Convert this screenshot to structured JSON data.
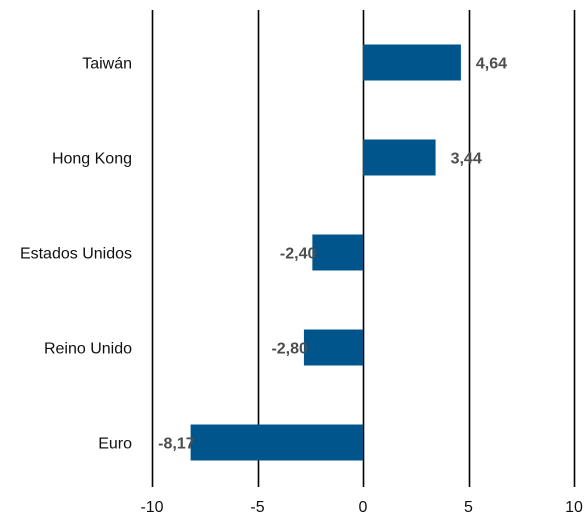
{
  "chart_data": {
    "type": "bar",
    "orientation": "horizontal",
    "categories": [
      "Taiwán",
      "Hong Kong",
      "Estados Unidos",
      "Reino Unido",
      "Euro"
    ],
    "values": [
      4.64,
      3.44,
      -2.4,
      -2.8,
      -8.17
    ],
    "data_labels": [
      "4,64",
      "3,44",
      "-2,40",
      "-2,80",
      "-8,17"
    ],
    "xlim": [
      -10,
      10
    ],
    "x_ticks": [
      -10,
      -5,
      0,
      5,
      10
    ],
    "x_tick_labels": [
      "-10",
      "-5",
      "0",
      "5",
      "10"
    ],
    "vertical_gridlines": true,
    "legend": "none",
    "title": "",
    "xlabel": "",
    "ylabel": "",
    "colors": {
      "bar": "#00568c",
      "gridline": "#000000",
      "data_label": "#4d4d4d",
      "text": "#111111"
    }
  }
}
